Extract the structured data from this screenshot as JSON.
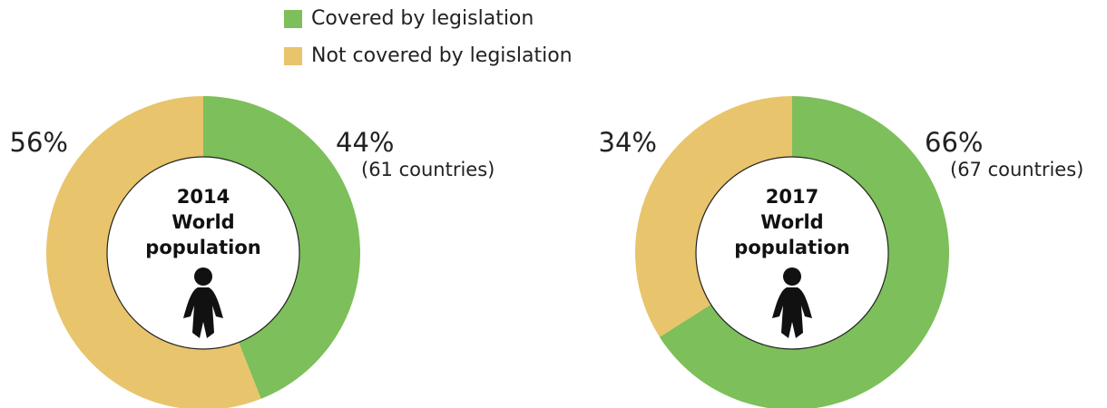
{
  "legend": {
    "entries": [
      {
        "name": "Covered by legislation",
        "color": "#7dbf5a"
      },
      {
        "name": "Not covered by legislation",
        "color": "#e8c46c"
      }
    ]
  },
  "chart_data": [
    {
      "type": "pie",
      "title": [
        "2014",
        "World",
        "population"
      ],
      "values": [
        44,
        56
      ],
      "value_labels": [
        "44%",
        "56%"
      ],
      "note": "(61 countries)"
    },
    {
      "type": "pie",
      "title": [
        "2017",
        "World",
        "population"
      ],
      "values": [
        66,
        34
      ],
      "value_labels": [
        "66%",
        "34%"
      ],
      "note": "(67 countries)"
    }
  ]
}
